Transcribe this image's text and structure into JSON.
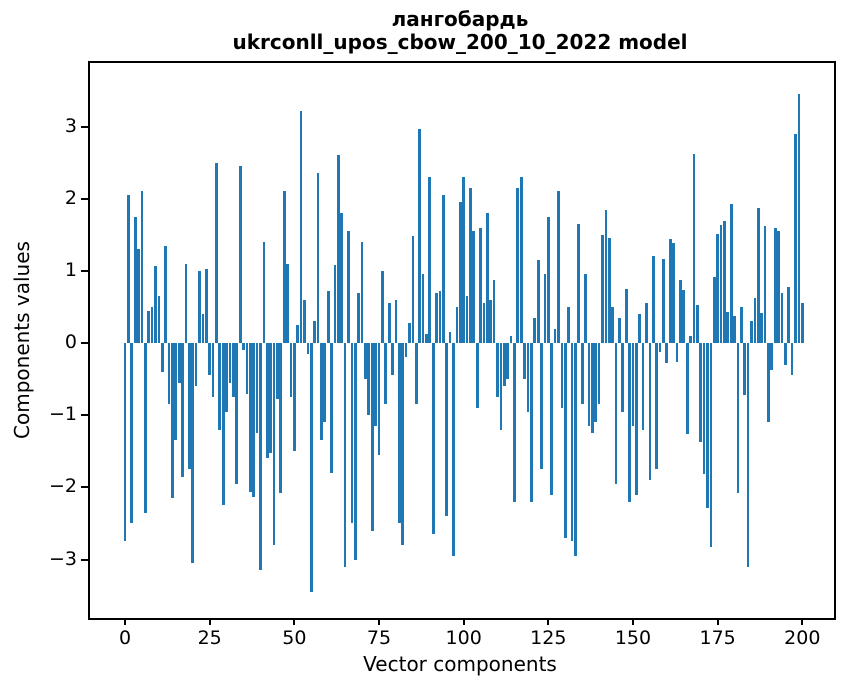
{
  "figure": {
    "title_line1": "лангобардь",
    "title_line2": "ukrconll_upos_cbow_200_10_2022 model",
    "xlabel": "Vector components",
    "ylabel": "Components values"
  },
  "chart_data": {
    "type": "bar",
    "title": "лангобардь — ukrconll_upos_cbow_200_10_2022 model",
    "xlabel": "Vector components",
    "ylabel": "Components values",
    "bar_color": "#1f77b4",
    "spine_color": "#000000",
    "grid": false,
    "legend_position": "none",
    "x_start": 0,
    "bar_width_units": 0.8,
    "xlim": [
      -10.34,
      209.36
    ],
    "ylim": [
      -3.81,
      3.88
    ],
    "xticks": [
      0,
      25,
      50,
      75,
      100,
      125,
      150,
      175,
      200
    ],
    "yticks": [
      -3,
      -2,
      -1,
      0,
      1,
      2,
      3
    ],
    "values": [
      -2.75,
      2.05,
      -2.5,
      1.75,
      1.3,
      2.1,
      -2.35,
      0.45,
      0.5,
      1.07,
      0.65,
      -0.4,
      1.35,
      -0.85,
      -2.15,
      -1.35,
      -0.55,
      -1.85,
      1.1,
      -1.75,
      -3.05,
      -0.6,
      1.0,
      0.4,
      1.02,
      -0.45,
      -0.75,
      2.5,
      -1.2,
      -2.25,
      -0.95,
      -0.55,
      -0.75,
      -1.95,
      2.45,
      -0.1,
      -0.7,
      -2.06,
      -2.13,
      -1.25,
      -3.15,
      1.4,
      -1.6,
      -1.53,
      -2.8,
      -0.77,
      -2.08,
      2.1,
      1.1,
      -0.75,
      -1.5,
      0.25,
      3.22,
      0.6,
      -0.15,
      -3.45,
      0.3,
      2.35,
      -1.35,
      -1.1,
      0.72,
      -1.8,
      1.08,
      2.6,
      1.8,
      -3.1,
      1.55,
      -2.5,
      -3.0,
      0.7,
      1.4,
      -0.5,
      -1.0,
      -2.6,
      -1.15,
      -1.55,
      1.0,
      -0.85,
      0.55,
      -0.45,
      0.6,
      -2.5,
      -2.8,
      -0.2,
      0.28,
      1.48,
      -0.85,
      2.97,
      0.95,
      0.12,
      2.3,
      -2.65,
      0.7,
      0.72,
      2.05,
      -2.4,
      0.15,
      -2.95,
      0.5,
      1.95,
      2.3,
      0.65,
      2.15,
      1.55,
      -0.9,
      1.6,
      0.55,
      1.8,
      0.6,
      0.87,
      -0.75,
      -1.2,
      -0.6,
      -0.5,
      0.1,
      -2.2,
      2.15,
      2.3,
      -0.5,
      -0.95,
      -2.2,
      0.35,
      1.15,
      -1.75,
      0.95,
      1.75,
      -2.1,
      0.2,
      2.1,
      -0.9,
      -2.7,
      0.5,
      -2.75,
      -2.95,
      1.65,
      -0.85,
      0.95,
      -1.15,
      -1.25,
      -1.1,
      -0.85,
      1.5,
      1.85,
      1.45,
      0.5,
      -1.95,
      0.35,
      -0.95,
      0.75,
      -2.2,
      -1.15,
      -2.1,
      0.4,
      -1.2,
      0.55,
      -1.9,
      1.2,
      -1.75,
      -0.12,
      1.16,
      -0.28,
      1.44,
      1.39,
      -0.26,
      0.87,
      0.74,
      -1.26,
      0.1,
      2.62,
      0.53,
      -1.37,
      -1.82,
      -2.29,
      -2.83,
      0.91,
      1.51,
      1.63,
      1.69,
      0.43,
      1.93,
      0.37,
      -2.08,
      0.5,
      -0.72,
      -3.1,
      0.3,
      0.62,
      1.87,
      0.42,
      1.62,
      -1.1,
      -0.37,
      1.6,
      1.55,
      0.7,
      -0.3,
      0.78,
      -0.45,
      2.9,
      3.45,
      0.55
    ]
  }
}
